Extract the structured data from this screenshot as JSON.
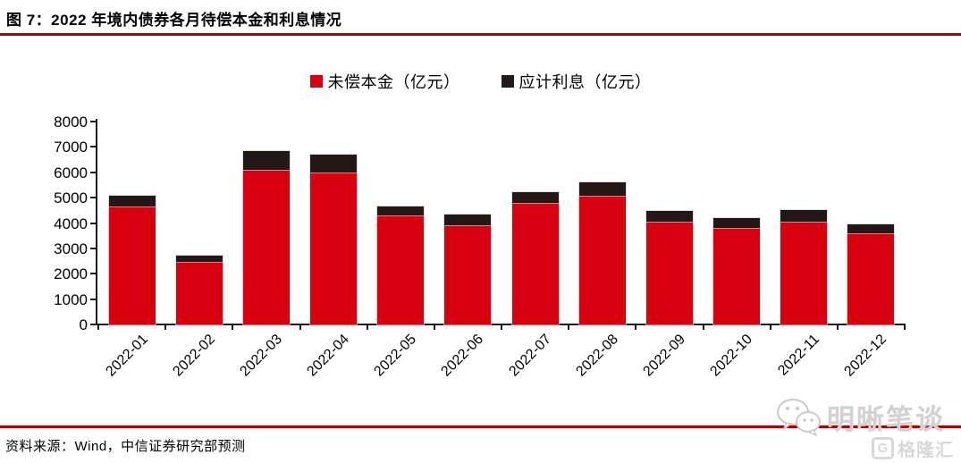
{
  "title": "图 7：2022 年境内债券各月待偿本金和利息情况",
  "source": "资料来源：Wind，中信证券研究部预测",
  "legend": [
    {
      "label": "未偿本金（亿元）",
      "color": "#d7000f"
    },
    {
      "label": "应计利息（亿元）",
      "color": "#231815"
    }
  ],
  "colors": {
    "principal_red": "#d7000f",
    "interest_black": "#231815",
    "accent_line_red": "#b00000",
    "watermark_gray": "#d2d2d2"
  },
  "icons": {
    "wechat": "wechat-bubbles-icon",
    "gelonghui": "gelonghui-logo-icon"
  },
  "watermark": {
    "wechat_text": "明晰笔谈",
    "logo_letter": "G",
    "logo_text": "格隆汇"
  },
  "chart_data": {
    "type": "bar",
    "stacked": true,
    "title": "2022 年境内债券各月待偿本金和利息情况",
    "categories": [
      "2022-01",
      "2022-02",
      "2022-03",
      "2022-04",
      "2022-05",
      "2022-06",
      "2022-07",
      "2022-08",
      "2022-09",
      "2022-10",
      "2022-11",
      "2022-12"
    ],
    "series": [
      {
        "name": "未偿本金（亿元）",
        "color": "#d7000f",
        "values": [
          4650,
          2450,
          6100,
          6000,
          4300,
          3900,
          4800,
          5080,
          4050,
          3800,
          4050,
          3600
        ]
      },
      {
        "name": "应计利息（亿元）",
        "color": "#231815",
        "values": [
          410,
          250,
          730,
          680,
          360,
          430,
          410,
          520,
          440,
          380,
          470,
          330
        ]
      }
    ],
    "xlabel": "",
    "ylabel": "",
    "ylim": [
      0,
      8000
    ],
    "yticks": [
      0,
      1000,
      2000,
      3000,
      4000,
      5000,
      6000,
      7000,
      8000
    ],
    "grid": false,
    "legend_position": "top",
    "x_tick_label_rotation_deg": 45
  }
}
